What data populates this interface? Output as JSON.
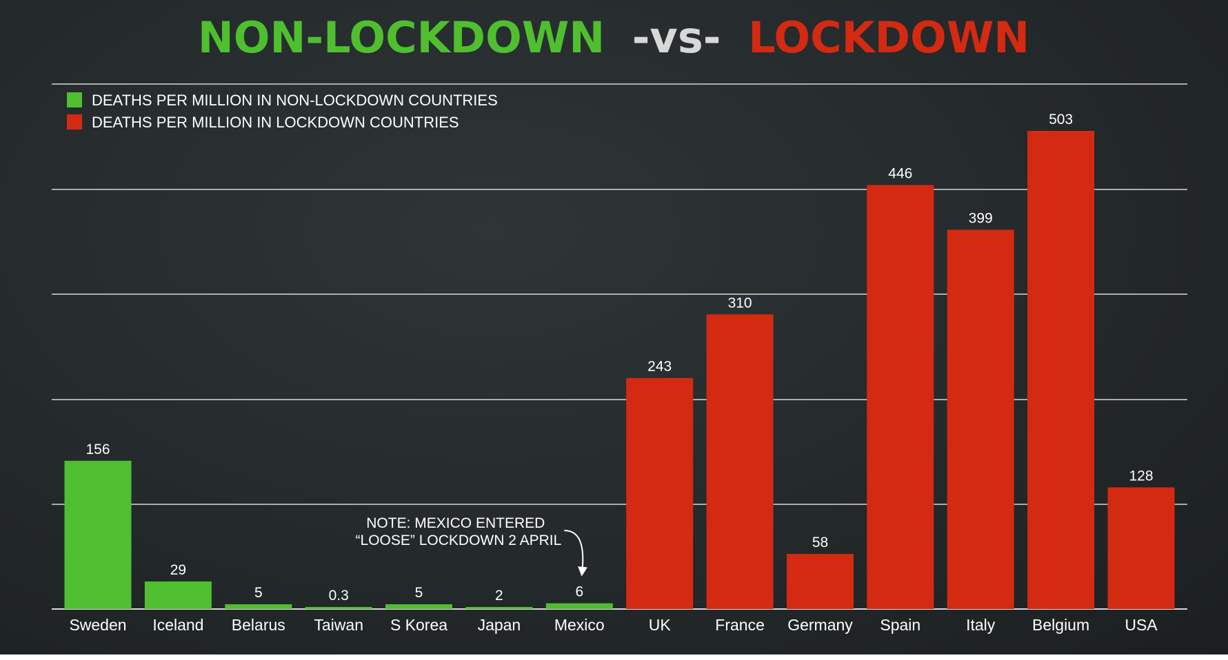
{
  "colors": {
    "non_lockdown": "#4fbf2f",
    "lockdown": "#d42a12",
    "vs": "#d8d8d8",
    "gridline": "#d9d9d9",
    "text": "#ffffff"
  },
  "chart_data": {
    "type": "bar",
    "title": {
      "left": "NON-LOCKDOWN",
      "middle": "-vs-",
      "right": "LOCKDOWN"
    },
    "xlabel": "",
    "ylabel": "",
    "ylim": [
      0,
      503
    ],
    "grid": true,
    "legend_placement": "top-left",
    "legend": [
      {
        "label": "DEATHS PER MILLION IN NON-LOCKDOWN COUNTRIES",
        "group": "non_lockdown"
      },
      {
        "label": "DEATHS PER MILLION IN LOCKDOWN COUNTRIES",
        "group": "lockdown"
      }
    ],
    "bars": [
      {
        "category": "Sweden",
        "value": 156,
        "value_label": "156",
        "group": "non_lockdown"
      },
      {
        "category": "Iceland",
        "value": 29,
        "value_label": "29",
        "group": "non_lockdown"
      },
      {
        "category": "Belarus",
        "value": 5,
        "value_label": "5",
        "group": "non_lockdown"
      },
      {
        "category": "Taiwan",
        "value": 0.3,
        "value_label": "0.3",
        "group": "non_lockdown"
      },
      {
        "category": "S Korea",
        "value": 5,
        "value_label": "5",
        "group": "non_lockdown"
      },
      {
        "category": "Japan",
        "value": 2,
        "value_label": "2",
        "group": "non_lockdown"
      },
      {
        "category": "Mexico",
        "value": 6,
        "value_label": "6",
        "group": "non_lockdown"
      },
      {
        "category": "UK",
        "value": 243,
        "value_label": "243",
        "group": "lockdown"
      },
      {
        "category": "France",
        "value": 310,
        "value_label": "310",
        "group": "lockdown"
      },
      {
        "category": "Germany",
        "value": 58,
        "value_label": "58",
        "group": "lockdown"
      },
      {
        "category": "Spain",
        "value": 446,
        "value_label": "446",
        "group": "lockdown"
      },
      {
        "category": "Italy",
        "value": 399,
        "value_label": "399",
        "group": "lockdown"
      },
      {
        "category": "Belgium",
        "value": 503,
        "value_label": "503",
        "group": "lockdown"
      },
      {
        "category": "USA",
        "value": 128,
        "value_label": "128",
        "group": "lockdown"
      }
    ],
    "annotation": {
      "target": "Mexico",
      "lines": [
        "NOTE: MEXICO ENTERED",
        "“LOOSE” LOCKDOWN 2 APRIL"
      ]
    }
  }
}
